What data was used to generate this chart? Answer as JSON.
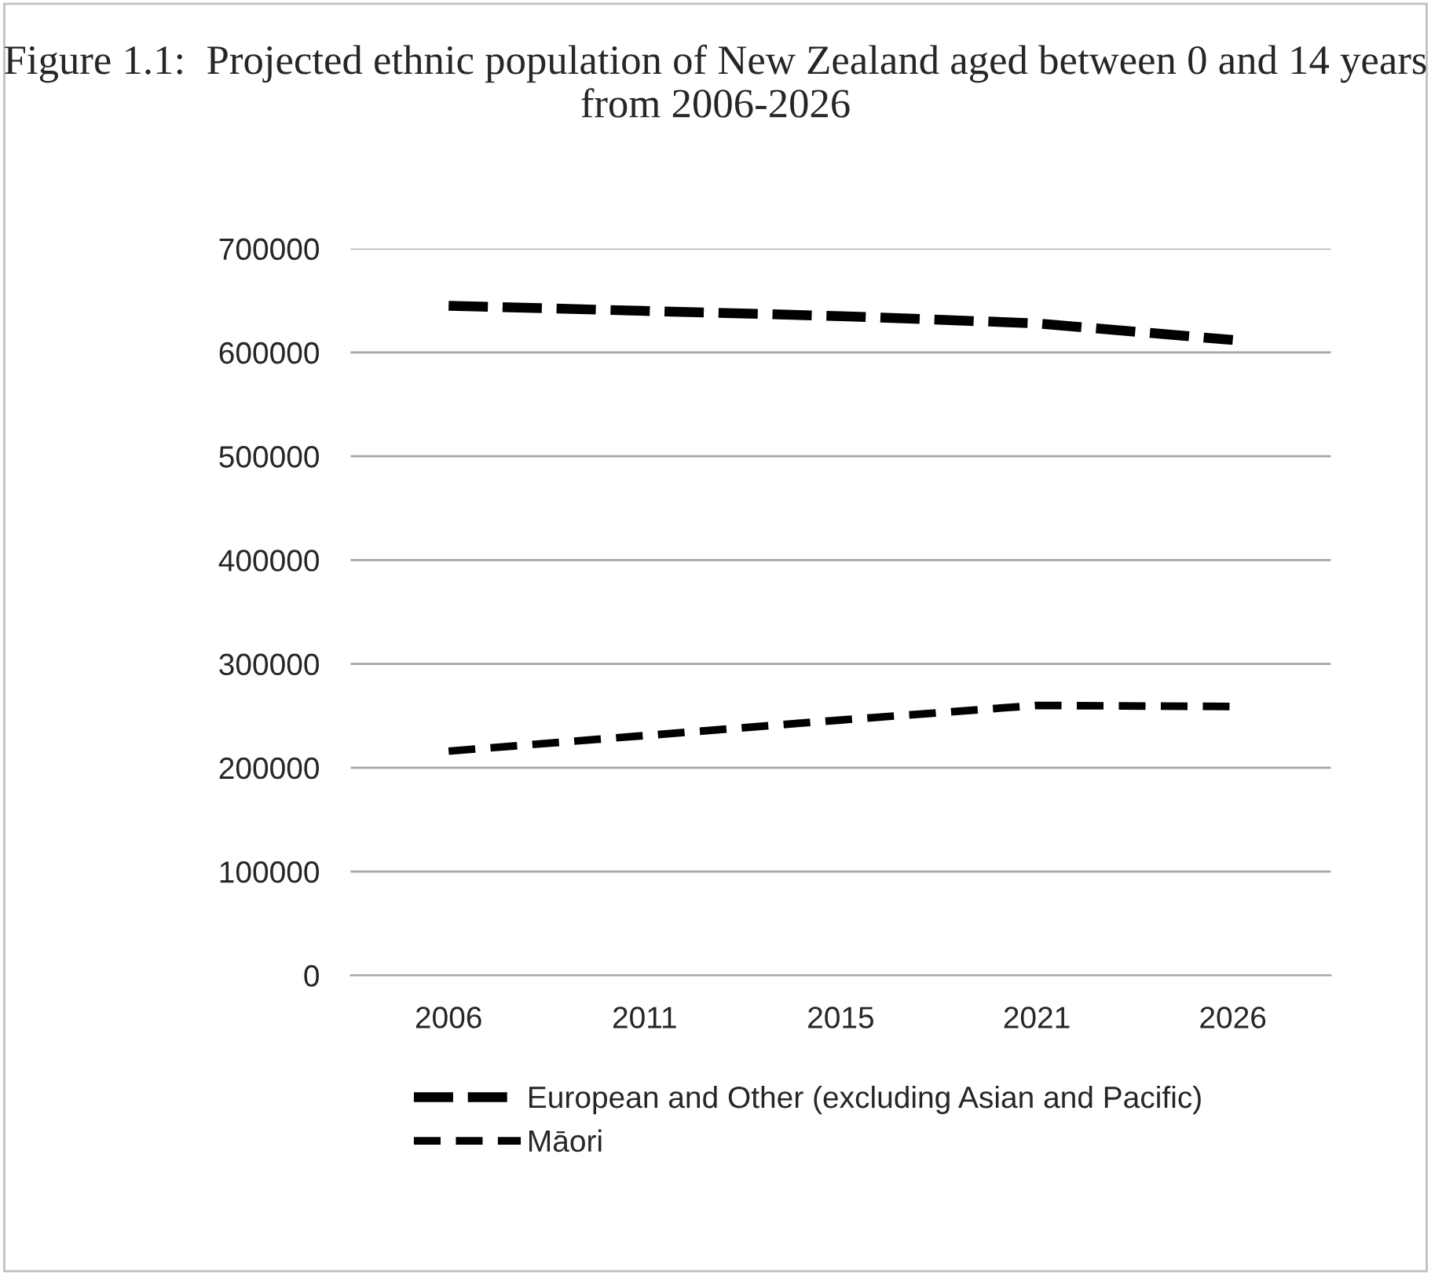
{
  "chart_data": {
    "type": "line",
    "title": "Figure 1.1:  Projected ethnic population of New Zealand aged between 0 and 14 years from 2006-2026",
    "categories": [
      "2006",
      "2011",
      "2015",
      "2021",
      "2026"
    ],
    "series": [
      {
        "name": "European and Other (excluding Asian and Pacific)",
        "color": "#000000",
        "values": [
          645000,
          640000,
          635000,
          628000,
          612000
        ]
      },
      {
        "name": "Māori",
        "color": "#000000",
        "values": [
          216000,
          231000,
          246000,
          260000,
          259000
        ]
      }
    ],
    "ylim": [
      0,
      700000
    ],
    "yticks": [
      0,
      100000,
      200000,
      300000,
      400000,
      500000,
      600000,
      700000
    ],
    "grid": "y",
    "legend": "bottom",
    "line_style": "dashed",
    "marker": "none"
  }
}
